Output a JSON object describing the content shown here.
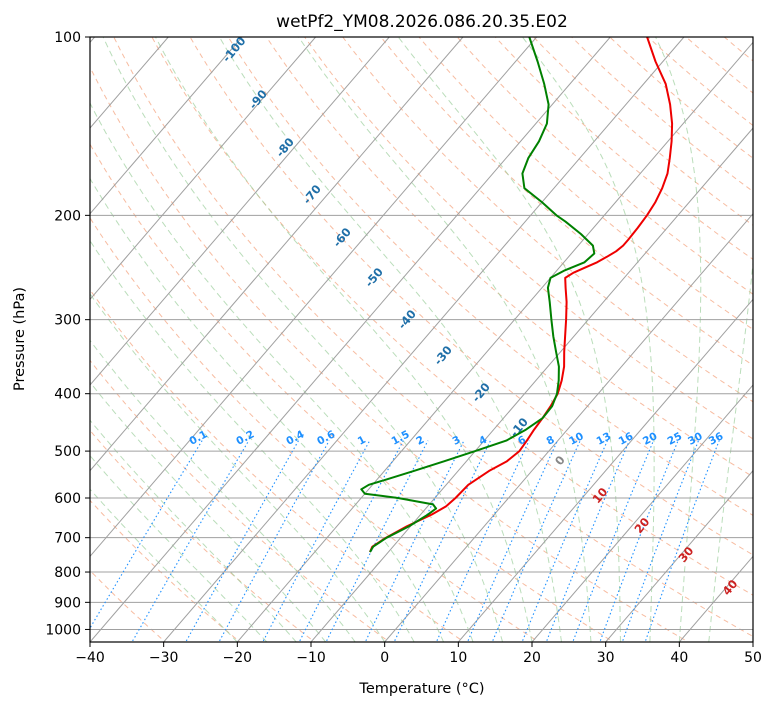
{
  "chart_data": {
    "type": "skew-t",
    "title": "wetPf2_YM08.2026.086.20.35.E02",
    "xlabel": "Temperature (°C)",
    "ylabel": "Pressure (hPa)",
    "xlim": [
      -40,
      50
    ],
    "ylim": [
      1050,
      100
    ],
    "y_scale": "log",
    "grid": true,
    "x_ticks": [
      "-40",
      "-30",
      "-20",
      "-10",
      "0",
      "10",
      "20",
      "30",
      "40",
      "50"
    ],
    "y_ticks": [
      "100",
      "200",
      "300",
      "400",
      "500",
      "600",
      "700",
      "800",
      "900",
      "1000"
    ],
    "dry_adiabat_labels": [
      "-100",
      "-90",
      "-80",
      "-70",
      "-60",
      "-50",
      "-40",
      "-30",
      "-20",
      "-10"
    ],
    "mixing_ratio_labels": [
      "0.1",
      "0.2",
      "0.4",
      "0.6",
      "1",
      "1.5",
      "2",
      "3",
      "4",
      "6",
      "8",
      "10",
      "13",
      "16",
      "20",
      "25",
      "30",
      "36"
    ],
    "moist_adiabat_labels": [
      "0",
      "10",
      "20",
      "30",
      "40"
    ],
    "colors": {
      "temperature": "#ee0000",
      "dewpoint": "#008000",
      "dry_adiabat": "#f4a582",
      "moist_adiabat": "#9ccf9c",
      "mixing_ratio": "#1e90ff",
      "isotherm": "#a0a0a0",
      "dry_label": "#1f6fa8",
      "mixing_label": "#1e90ff",
      "moist_label": "#cc2222"
    },
    "series": [
      {
        "name": "Temperature",
        "pressure": [
          740,
          725,
          700,
          670,
          640,
          620,
          600,
          570,
          540,
          520,
          500,
          480,
          460,
          440,
          420,
          400,
          380,
          360,
          340,
          320,
          300,
          280,
          265,
          255,
          250,
          245,
          240,
          235,
          230,
          225,
          220,
          210,
          200,
          190,
          180,
          170,
          160,
          150,
          140,
          130,
          120,
          110,
          100
        ],
        "values": [
          -12.5,
          -12.8,
          -12.0,
          -10.5,
          -8.5,
          -7.5,
          -7.2,
          -7.0,
          -5.8,
          -4.5,
          -4.0,
          -4.2,
          -4.5,
          -4.7,
          -5.0,
          -5.5,
          -6.5,
          -7.8,
          -9.5,
          -11.2,
          -13.0,
          -15.0,
          -16.8,
          -18.0,
          -17.5,
          -16.5,
          -15.5,
          -14.8,
          -14.2,
          -13.9,
          -13.9,
          -14.0,
          -14.2,
          -14.6,
          -15.3,
          -16.3,
          -17.8,
          -19.5,
          -21.5,
          -24.0,
          -27.0,
          -31.0,
          -35.0
        ]
      },
      {
        "name": "Dewpoint",
        "pressure": [
          740,
          725,
          700,
          670,
          640,
          625,
          615,
          600,
          590,
          580,
          570,
          560,
          540,
          520,
          500,
          480,
          460,
          440,
          420,
          400,
          380,
          360,
          340,
          320,
          300,
          280,
          265,
          255,
          248,
          240,
          232,
          225,
          215,
          205,
          200,
          190,
          180,
          170,
          160,
          150,
          140,
          130,
          120,
          110,
          100
        ],
        "values": [
          -12.5,
          -12.7,
          -11.9,
          -10.2,
          -9.0,
          -8.6,
          -9.5,
          -15.0,
          -20.0,
          -21.0,
          -20.5,
          -19.0,
          -16.0,
          -13.0,
          -10.0,
          -7.0,
          -5.6,
          -4.7,
          -4.8,
          -5.6,
          -6.9,
          -8.5,
          -10.6,
          -12.8,
          -15.0,
          -17.3,
          -19.2,
          -20.0,
          -19.0,
          -17.2,
          -16.9,
          -18.0,
          -21.0,
          -24.5,
          -26.5,
          -30.0,
          -34.0,
          -36.0,
          -37.0,
          -37.5,
          -38.5,
          -40.5,
          -43.5,
          -47.0,
          -51.0
        ]
      }
    ]
  }
}
